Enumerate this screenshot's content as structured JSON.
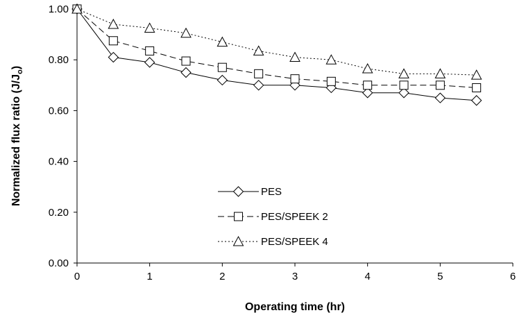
{
  "chart_data": {
    "type": "line",
    "xlabel": "Operating time (hr)",
    "ylabel": "Normalized flux ratio (J/J",
    "ylabel_subscript": "o",
    "ylabel_close": ")",
    "xlim": [
      0,
      6
    ],
    "ylim": [
      0,
      1.0
    ],
    "x_ticks": [
      "0",
      "1",
      "2",
      "3",
      "4",
      "5",
      "6"
    ],
    "y_ticks": [
      "0.00",
      "0.20",
      "0.40",
      "0.60",
      "0.80",
      "1.00"
    ],
    "grid": false,
    "legend_position": "lower-center",
    "x": [
      0,
      0.5,
      1,
      1.5,
      2,
      2.5,
      3,
      3.5,
      4,
      4.5,
      5,
      5.5
    ],
    "series": [
      {
        "name": "PES",
        "marker": "diamond",
        "line_style": "solid",
        "values": [
          1.0,
          0.81,
          0.79,
          0.75,
          0.72,
          0.7,
          0.7,
          0.69,
          0.67,
          0.67,
          0.65,
          0.64
        ]
      },
      {
        "name": "PES/SPEEK 2",
        "marker": "square",
        "line_style": "dashed",
        "values": [
          1.0,
          0.875,
          0.835,
          0.795,
          0.77,
          0.745,
          0.725,
          0.715,
          0.7,
          0.7,
          0.7,
          0.69
        ]
      },
      {
        "name": "PES/SPEEK 4",
        "marker": "triangle",
        "line_style": "dotted",
        "values": [
          1.0,
          0.94,
          0.925,
          0.905,
          0.87,
          0.835,
          0.81,
          0.8,
          0.765,
          0.745,
          0.745,
          0.74
        ]
      }
    ]
  }
}
